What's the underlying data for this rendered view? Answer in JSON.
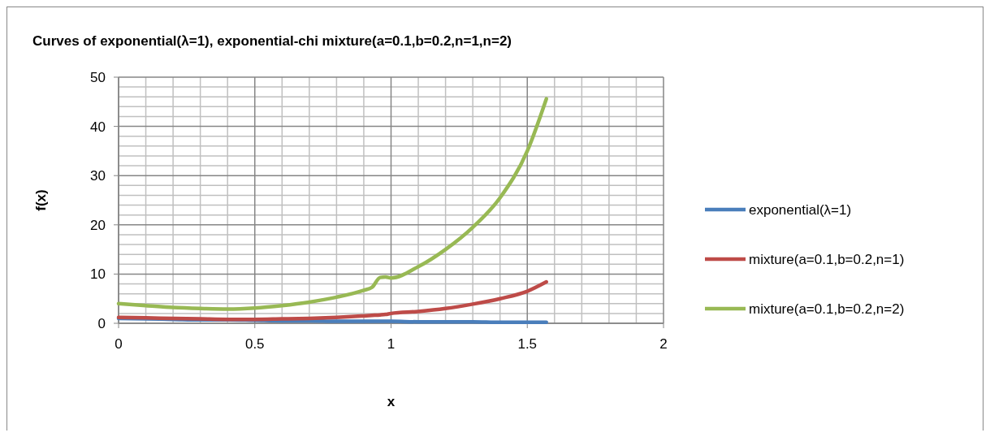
{
  "chart_data": {
    "type": "line",
    "title": "Curves of exponential(λ=1), exponential-chi mixture(a=0.1,b=0.2,n=1,n=2)",
    "xlabel": "x",
    "ylabel": "f(x)",
    "xlim": [
      0,
      2
    ],
    "xticks": [
      0,
      0.5,
      1,
      1.5,
      2
    ],
    "ylim": [
      0,
      50
    ],
    "yticks": [
      0,
      10,
      20,
      30,
      40,
      50
    ],
    "grid": true,
    "legend": "right",
    "marker": "none",
    "line_style": "solid",
    "x": [
      0,
      0.1,
      0.2,
      0.3,
      0.4,
      0.5,
      0.6,
      0.7,
      0.8,
      0.9,
      0.93,
      0.96,
      0.98,
      1.0,
      1.1,
      1.2,
      1.3,
      1.4,
      1.5,
      1.57
    ],
    "series": [
      {
        "name": "exponential(λ=1)",
        "color": "#4a7ebb",
        "values": [
          1,
          0.9,
          0.8,
          0.7,
          0.7,
          0.6,
          0.5,
          0.5,
          0.4,
          0.4,
          0.4,
          0.4,
          0.4,
          0.4,
          0.3,
          0.3,
          0.3,
          0.2,
          0.2,
          0.2
        ]
      },
      {
        "name": "mixture(a=0.1,b=0.2,n=1)",
        "color": "#be4b48",
        "values": [
          1.2,
          1.1,
          1.0,
          0.9,
          0.8,
          0.8,
          0.9,
          1.0,
          1.2,
          1.5,
          1.6,
          1.7,
          1.8,
          2.0,
          2.4,
          3.0,
          3.9,
          5.0,
          6.5,
          8.4
        ]
      },
      {
        "name": "mixture(a=0.1,b=0.2,n=2)",
        "color": "#98b954",
        "values": [
          4,
          3.6,
          3.2,
          3.0,
          2.9,
          3.1,
          3.6,
          4.3,
          5.3,
          6.7,
          7.3,
          9.3,
          9.4,
          9.2,
          11.5,
          15,
          19.5,
          25.5,
          35,
          45.6
        ]
      }
    ]
  }
}
